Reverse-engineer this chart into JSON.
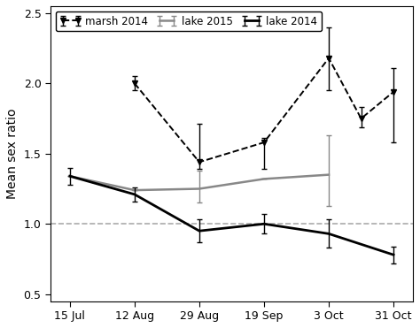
{
  "title": "",
  "ylabel": "Mean sex ratio",
  "xlabel": "",
  "xlim": [
    -0.3,
    5.3
  ],
  "ylim": [
    0.45,
    2.55
  ],
  "yticks": [
    0.5,
    1.0,
    1.5,
    2.0,
    2.5
  ],
  "xtick_labels": [
    "15 Jul",
    "12 Aug",
    "29 Aug",
    "19 Sep",
    "3 Oct",
    "31 Oct"
  ],
  "hline_y": 1.0,
  "lake2014_x": [
    0,
    1,
    2,
    3,
    4,
    5
  ],
  "lake2014_y": [
    1.34,
    1.21,
    0.95,
    1.0,
    0.93,
    0.78
  ],
  "lake2014_yerr": [
    0.06,
    0.05,
    0.08,
    0.07,
    0.1,
    0.06
  ],
  "lake2015_x": [
    0,
    1,
    2,
    3,
    4
  ],
  "lake2015_y": [
    1.34,
    1.24,
    1.25,
    1.32,
    1.35
  ],
  "lake2015_yerr_lower": [
    0.0,
    0.0,
    0.1,
    0.0,
    0.22
  ],
  "lake2015_yerr_upper": [
    0.0,
    0.0,
    0.13,
    0.0,
    0.28
  ],
  "marsh2014_x": [
    1,
    2,
    3,
    4,
    4.5,
    5
  ],
  "marsh2014_y": [
    2.0,
    1.44,
    1.58,
    2.18,
    1.75,
    1.94
  ],
  "marsh2014_yerr_upper": [
    0.05,
    0.27,
    0.03,
    0.22,
    0.08,
    0.17
  ],
  "marsh2014_yerr_lower": [
    0.05,
    0.05,
    0.19,
    0.23,
    0.06,
    0.36
  ],
  "lake2014_color": "#000000",
  "lake2015_color": "#888888",
  "marsh2014_color": "#000000",
  "bg_color": "#ffffff",
  "hline_color": "#aaaaaa"
}
